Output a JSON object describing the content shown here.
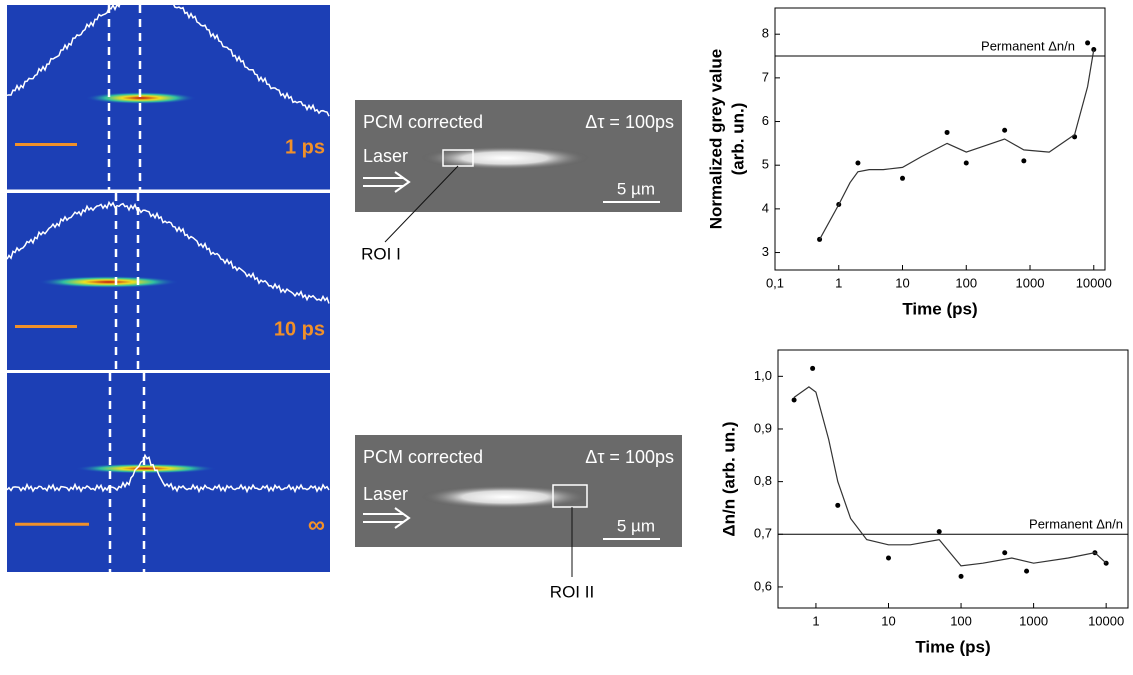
{
  "panels": {
    "left": {
      "labels": [
        "1 ps",
        "10 ps",
        "∞"
      ]
    },
    "middle": [
      {
        "caption": "PCM corrected",
        "delay": "Δτ = 100ps",
        "laser": "Laser",
        "scale": "5 µm",
        "roi": "ROI I"
      },
      {
        "caption": "PCM corrected",
        "delay": "Δτ = 100ps",
        "laser": "Laser",
        "scale": "5 µm",
        "roi": "ROI II"
      }
    ]
  },
  "chart_data": [
    {
      "type": "scatter",
      "ylabel": [
        "Normalized grey value",
        "(arb. un.)"
      ],
      "xlabel": "Time (ps)",
      "xscale": "log",
      "xlim": [
        0.1,
        15000
      ],
      "ylim": [
        2.6,
        8.6
      ],
      "xticks": [
        {
          "value": 0.1,
          "label": "0,1"
        },
        1,
        10,
        100,
        1000,
        10000
      ],
      "yticks": [
        3,
        4,
        5,
        6,
        7,
        8
      ],
      "hline": {
        "value": 7.5,
        "label": "Permanent Δn/n"
      },
      "series": [
        {
          "mode": "points",
          "color": "#000",
          "x": [
            0.5,
            1,
            2,
            10,
            50,
            100,
            400,
            800,
            5000,
            8000,
            10000
          ],
          "values": [
            3.3,
            4.1,
            5.05,
            4.7,
            5.75,
            5.05,
            5.8,
            5.1,
            5.65,
            7.8,
            7.65
          ]
        },
        {
          "mode": "line",
          "color": "#333",
          "x": [
            0.5,
            1,
            1.5,
            2,
            3,
            5,
            10,
            20,
            50,
            100,
            200,
            400,
            800,
            2000,
            5000,
            8000,
            10000
          ],
          "values": [
            3.3,
            4.1,
            4.6,
            4.85,
            4.9,
            4.9,
            4.95,
            5.2,
            5.5,
            5.3,
            5.45,
            5.6,
            5.35,
            5.3,
            5.7,
            6.8,
            7.65
          ]
        }
      ]
    },
    {
      "type": "scatter",
      "ylabel": [
        "Δn/n (arb. un.)"
      ],
      "xlabel": "Time (ps)",
      "xscale": "log",
      "xlim": [
        0.3,
        20000
      ],
      "ylim": [
        0.56,
        1.05
      ],
      "xticks": [
        1,
        10,
        100,
        1000,
        10000
      ],
      "yticks": [
        {
          "value": 0.6,
          "label": "0,6"
        },
        {
          "value": 0.7,
          "label": "0,7"
        },
        {
          "value": 0.8,
          "label": "0,8"
        },
        {
          "value": 0.9,
          "label": "0,9"
        },
        {
          "value": 1.0,
          "label": "1,0"
        }
      ],
      "hline": {
        "value": 0.7,
        "label": "Permanent Δn/n"
      },
      "series": [
        {
          "mode": "points",
          "color": "#000",
          "x": [
            0.5,
            0.9,
            2,
            10,
            50,
            100,
            400,
            800,
            7000,
            10000
          ],
          "values": [
            0.955,
            1.015,
            0.755,
            0.655,
            0.705,
            0.62,
            0.665,
            0.63,
            0.665,
            0.645
          ]
        },
        {
          "mode": "line",
          "color": "#333",
          "x": [
            0.5,
            0.8,
            1,
            1.5,
            2,
            3,
            5,
            10,
            20,
            50,
            100,
            200,
            500,
            1000,
            3000,
            7000,
            10000
          ],
          "values": [
            0.96,
            0.98,
            0.97,
            0.88,
            0.8,
            0.73,
            0.69,
            0.68,
            0.68,
            0.69,
            0.64,
            0.645,
            0.655,
            0.645,
            0.655,
            0.665,
            0.645
          ]
        }
      ]
    }
  ]
}
